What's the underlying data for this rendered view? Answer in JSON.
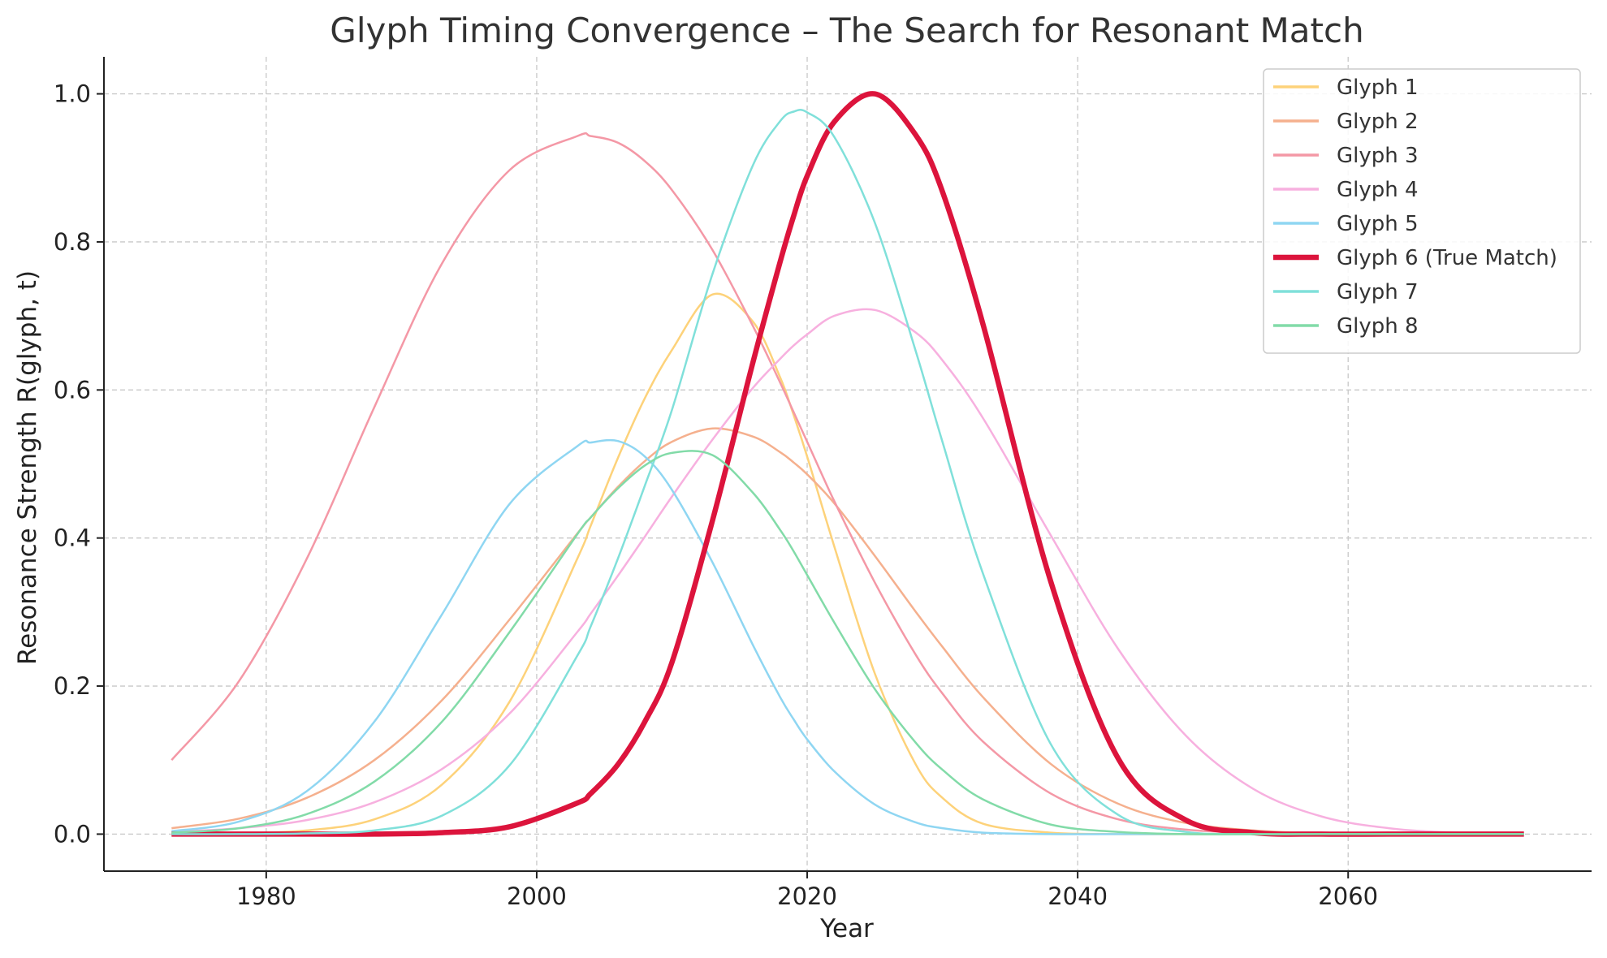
{
  "chart_data": {
    "type": "line",
    "title": "Glyph Timing Convergence – The Search for Resonant Match",
    "xlabel": "Year",
    "ylabel": "Resonance Strength R(glyph, t)",
    "xlim": [
      1968,
      2078
    ],
    "ylim": [
      -0.05,
      1.05
    ],
    "xticks": [
      1980,
      2000,
      2020,
      2040,
      2060
    ],
    "yticks": [
      0.0,
      0.2,
      0.4,
      0.6,
      0.8,
      1.0
    ],
    "xtick_labels": [
      "1980",
      "2000",
      "2020",
      "2040",
      "2060"
    ],
    "ytick_labels": [
      "0.0",
      "0.2",
      "0.4",
      "0.6",
      "0.8",
      "1.0"
    ],
    "grid": true,
    "legend_position": "top-right",
    "x": [
      1973,
      1978,
      1983,
      1988,
      1993,
      1998,
      2003,
      2004,
      2006,
      2008,
      2010,
      2013,
      2016,
      2018,
      2019,
      2020,
      2022,
      2025,
      2028,
      2030,
      2033,
      2038,
      2043,
      2048,
      2053,
      2058,
      2063,
      2068,
      2073
    ],
    "series": [
      {
        "name": "Glyph 1",
        "color": "#fdd27a",
        "width": 2.5,
        "values": [
          0.0,
          0.001,
          0.005,
          0.02,
          0.067,
          0.179,
          0.372,
          0.417,
          0.508,
          0.589,
          0.654,
          0.729,
          0.692,
          0.617,
          0.566,
          0.51,
          0.389,
          0.217,
          0.095,
          0.049,
          0.014,
          0.002,
          0.0,
          0.0,
          0.0,
          0.0,
          0.0,
          0.0,
          0.0
        ]
      },
      {
        "name": "Glyph 2",
        "color": "#f5b08e",
        "width": 2.5,
        "values": [
          0.008,
          0.021,
          0.049,
          0.1,
          0.181,
          0.29,
          0.406,
          0.428,
          0.469,
          0.504,
          0.53,
          0.548,
          0.537,
          0.516,
          0.502,
          0.486,
          0.447,
          0.376,
          0.301,
          0.253,
          0.185,
          0.095,
          0.041,
          0.015,
          0.005,
          0.001,
          0.0,
          0.0,
          0.0
        ]
      },
      {
        "name": "Glyph 3",
        "color": "#f498a6",
        "width": 2.5,
        "values": [
          0.1,
          0.207,
          0.372,
          0.577,
          0.771,
          0.897,
          0.943,
          0.943,
          0.934,
          0.909,
          0.87,
          0.789,
          0.686,
          0.61,
          0.57,
          0.53,
          0.45,
          0.34,
          0.243,
          0.19,
          0.125,
          0.055,
          0.02,
          0.006,
          0.002,
          0.0,
          0.0,
          0.0,
          0.0
        ]
      },
      {
        "name": "Glyph 4",
        "color": "#f7b0df",
        "width": 2.5,
        "values": [
          0.003,
          0.008,
          0.019,
          0.043,
          0.088,
          0.163,
          0.273,
          0.298,
          0.349,
          0.402,
          0.456,
          0.533,
          0.603,
          0.642,
          0.66,
          0.675,
          0.7,
          0.708,
          0.678,
          0.64,
          0.562,
          0.404,
          0.25,
          0.133,
          0.061,
          0.024,
          0.008,
          0.002,
          0.001
        ]
      },
      {
        "name": "Glyph 5",
        "color": "#8fd6f2",
        "width": 2.5,
        "values": [
          0.004,
          0.017,
          0.058,
          0.152,
          0.297,
          0.446,
          0.524,
          0.529,
          0.531,
          0.51,
          0.465,
          0.367,
          0.255,
          0.185,
          0.155,
          0.128,
          0.085,
          0.04,
          0.016,
          0.008,
          0.002,
          0.0,
          0.0,
          0.0,
          0.0,
          0.0,
          0.0,
          0.0,
          0.0
        ]
      },
      {
        "name": "Glyph 6 (True Match)",
        "color": "#dc143c",
        "width": 6.5,
        "values": [
          0.0,
          0.0,
          0.0,
          0.0,
          0.002,
          0.01,
          0.042,
          0.055,
          0.094,
          0.152,
          0.232,
          0.424,
          0.638,
          0.773,
          0.835,
          0.889,
          0.962,
          1.0,
          0.945,
          0.868,
          0.689,
          0.342,
          0.102,
          0.019,
          0.002,
          0.0,
          0.0,
          0.0,
          0.0
        ]
      },
      {
        "name": "Glyph 7",
        "color": "#80e0da",
        "width": 2.5,
        "values": [
          0.0,
          0.0,
          0.001,
          0.005,
          0.025,
          0.093,
          0.241,
          0.281,
          0.372,
          0.471,
          0.573,
          0.757,
          0.904,
          0.963,
          0.976,
          0.975,
          0.942,
          0.826,
          0.654,
          0.53,
          0.352,
          0.122,
          0.026,
          0.003,
          0.0,
          0.0,
          0.0,
          0.0,
          0.0
        ]
      },
      {
        "name": "Glyph 8",
        "color": "#82dba8",
        "width": 2.5,
        "values": [
          0.002,
          0.008,
          0.027,
          0.071,
          0.152,
          0.273,
          0.405,
          0.428,
          0.467,
          0.498,
          0.515,
          0.512,
          0.461,
          0.411,
          0.382,
          0.35,
          0.286,
          0.196,
          0.124,
          0.087,
          0.047,
          0.013,
          0.003,
          0.0,
          0.0,
          0.0,
          0.0,
          0.0,
          0.0
        ]
      }
    ]
  }
}
